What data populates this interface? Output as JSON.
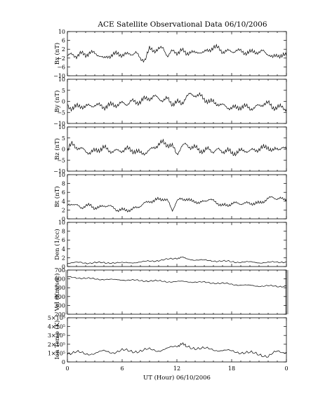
{
  "title": "ACE Satellite Observational Data   06/10/2006",
  "xlabel": "UT (Hour)   06/10/2006",
  "x_ticks": [
    "0",
    "6",
    "12",
    "18",
    "0"
  ],
  "chart_data": [
    {
      "type": "line",
      "ylabel": "Bx (nT)",
      "ylim": [
        -10,
        10
      ],
      "yticks": [
        -10,
        -6,
        -2,
        2,
        6,
        10
      ],
      "ytick_labels": [
        "−10",
        "−6",
        "−2",
        "2",
        "6",
        "10"
      ],
      "xlim": [
        0,
        24
      ],
      "x": [
        0,
        0.5,
        1,
        1.5,
        2,
        2.5,
        3,
        3.5,
        4,
        4.5,
        5,
        5.5,
        6,
        6.5,
        7,
        7.5,
        8,
        8.5,
        9,
        9.5,
        10,
        10.5,
        11,
        11.5,
        12,
        12.5,
        13,
        13.5,
        14,
        14.5,
        15,
        15.5,
        16,
        16.5,
        17,
        17.5,
        18,
        18.5,
        19,
        19.5,
        20,
        20.5,
        21,
        21.5,
        22,
        22.5,
        23,
        23.5,
        24
      ],
      "y": [
        -1,
        -0.5,
        -1,
        0,
        -0.5,
        0.5,
        0,
        -0.5,
        -2.5,
        -1,
        -0.5,
        0,
        -0.5,
        -0.5,
        0,
        0.5,
        -2.5,
        -2.5,
        2,
        1.5,
        2,
        2.5,
        -1,
        1,
        0.5,
        1.5,
        0,
        1,
        0,
        1,
        0.5,
        1.5,
        3,
        2.5,
        1,
        1,
        1,
        1.5,
        1,
        0.5,
        0.5,
        1,
        0.5,
        1,
        0,
        -2,
        -0.5,
        -1,
        -1
      ]
    },
    {
      "type": "line",
      "ylabel": "By (nT)",
      "ylim": [
        -10,
        10
      ],
      "yticks": [
        -10,
        -5,
        0,
        5,
        10
      ],
      "ytick_labels": [
        "−10",
        "−5",
        "0",
        "5",
        "10"
      ],
      "xlim": [
        0,
        24
      ],
      "x": [
        0,
        0.5,
        1,
        1.5,
        2,
        2.5,
        3,
        3.5,
        4,
        4.5,
        5,
        5.5,
        6,
        6.5,
        7,
        7.5,
        8,
        8.5,
        9,
        9.5,
        10,
        10.5,
        11,
        11.5,
        12,
        12.5,
        13,
        13.5,
        14,
        14.5,
        15,
        15.5,
        16,
        16.5,
        17,
        17.5,
        18,
        18.5,
        19,
        19.5,
        20,
        20.5,
        21,
        21.5,
        22,
        22.5,
        23,
        23.5,
        24
      ],
      "y": [
        -2,
        -3,
        -2.5,
        -2,
        -2.5,
        -2,
        -1.5,
        -2,
        -2.5,
        -2,
        -1.5,
        -1.5,
        -1,
        -1,
        0,
        -0.5,
        0,
        1,
        1.5,
        2,
        1.5,
        0.5,
        1,
        -1,
        -0.5,
        -1,
        2,
        3,
        3,
        2.5,
        1,
        0,
        -0.5,
        -1,
        -2,
        -2.5,
        -3,
        -3,
        -2.5,
        -2.5,
        -3,
        -3,
        -2,
        -1,
        -1,
        -2.5,
        -3,
        -2.5,
        -3.5
      ]
    },
    {
      "type": "line",
      "ylabel": "Bz (nT)",
      "ylim": [
        -10,
        10
      ],
      "yticks": [
        -10,
        -5,
        0,
        5,
        10
      ],
      "ytick_labels": [
        "−10",
        "−5",
        "0",
        "5",
        "10"
      ],
      "xlim": [
        0,
        24
      ],
      "x": [
        0,
        0.5,
        1,
        1.5,
        2,
        2.5,
        3,
        3.5,
        4,
        4.5,
        5,
        5.5,
        6,
        6.5,
        7,
        7.5,
        8,
        8.5,
        9,
        9.5,
        10,
        10.5,
        11,
        11.5,
        12,
        12.5,
        13,
        13.5,
        14,
        14.5,
        15,
        15.5,
        16,
        16.5,
        17,
        17.5,
        18,
        18.5,
        19,
        19.5,
        20,
        20.5,
        21,
        21.5,
        22,
        22.5,
        23,
        23.5,
        24
      ],
      "y": [
        0,
        2,
        1,
        0,
        -1,
        -1.5,
        -1,
        0,
        0.5,
        -0.5,
        -1,
        -1,
        -0.5,
        0,
        -0.5,
        -1,
        -2,
        -1.5,
        -1,
        1,
        2,
        3,
        2,
        1,
        -2,
        1,
        2,
        1,
        0.5,
        -0.5,
        -1,
        0,
        -1,
        -0.5,
        -1,
        -0.5,
        -2,
        -1.5,
        -1,
        -0.5,
        -1,
        -0.5,
        0,
        0.5,
        1,
        -1,
        0,
        1,
        -0.5
      ]
    },
    {
      "type": "line",
      "ylabel": "Bt (nT)",
      "ylim": [
        0,
        10
      ],
      "yticks": [
        0,
        2,
        4,
        6,
        8,
        10
      ],
      "ytick_labels": [
        "0",
        "2",
        "4",
        "6",
        "8",
        "10"
      ],
      "xlim": [
        0,
        24
      ],
      "x": [
        0,
        0.5,
        1,
        1.5,
        2,
        2.5,
        3,
        3.5,
        4,
        4.5,
        5,
        5.5,
        6,
        6.5,
        7,
        7.5,
        8,
        8.5,
        9,
        9.5,
        10,
        10.5,
        11,
        11.5,
        12,
        12.5,
        13,
        13.5,
        14,
        14.5,
        15,
        15.5,
        16,
        16.5,
        17,
        17.5,
        18,
        18.5,
        19,
        19.5,
        20,
        20.5,
        21,
        21.5,
        22,
        22.5,
        23,
        23.5,
        24
      ],
      "y": [
        3,
        3.5,
        3,
        2.5,
        3,
        3,
        2.5,
        2.5,
        3,
        3,
        2.5,
        2,
        2,
        2,
        2,
        2.5,
        3,
        3.5,
        4,
        4,
        4.5,
        4.5,
        4,
        2,
        4,
        4.5,
        4.5,
        4,
        4,
        3.5,
        4,
        4.5,
        4,
        3.5,
        3,
        3,
        3.5,
        3.5,
        3.5,
        3.5,
        3.5,
        3.5,
        3.5,
        4,
        4.5,
        5,
        4.5,
        4.5,
        4.5
      ]
    },
    {
      "type": "line",
      "ylabel": "Den (1/cc)",
      "ylim": [
        0,
        10
      ],
      "yticks": [
        0,
        2,
        4,
        6,
        8,
        10
      ],
      "ytick_labels": [
        "0",
        "2",
        "4",
        "6",
        "8",
        "10"
      ],
      "xlim": [
        0,
        24
      ],
      "x": [
        0,
        1,
        2,
        3,
        4,
        5,
        6,
        7,
        8,
        9,
        10,
        11,
        12,
        12.5,
        13,
        14,
        15,
        16,
        17,
        18,
        19,
        20,
        21,
        22,
        23,
        24
      ],
      "y": [
        0.8,
        0.9,
        0.8,
        0.9,
        0.8,
        0.9,
        0.8,
        0.9,
        1,
        1.2,
        1.4,
        1.6,
        1.9,
        2.1,
        1.8,
        1.5,
        1.4,
        1.3,
        1.2,
        1.1,
        1,
        1,
        0.9,
        0.9,
        1,
        1.1
      ]
    },
    {
      "type": "line",
      "ylabel": "Vel (Km/sec)",
      "ylim": [
        200,
        700
      ],
      "yticks": [
        200,
        300,
        400,
        500,
        600,
        700
      ],
      "ytick_labels": [
        "200",
        "300",
        "400",
        "500",
        "600",
        "700"
      ],
      "xlim": [
        0,
        24
      ],
      "x": [
        0,
        1,
        2,
        3,
        4,
        5,
        6,
        7,
        8,
        9,
        10,
        11,
        12,
        13,
        14,
        15,
        16,
        17,
        18,
        19,
        20,
        21,
        22,
        23,
        24
      ],
      "y": [
        620,
        615,
        605,
        600,
        595,
        590,
        590,
        585,
        580,
        578,
        575,
        570,
        568,
        570,
        565,
        560,
        555,
        548,
        540,
        530,
        525,
        520,
        520,
        515,
        520
      ]
    },
    {
      "type": "line",
      "ylabel": "Ion Temp (K)",
      "ylim": [
        0,
        500000
      ],
      "yticks": [
        0,
        100000,
        200000,
        300000,
        400000,
        500000
      ],
      "ytick_labels": [
        "0",
        "1×10⁵",
        "2×10⁵",
        "3×10⁵",
        "4×10⁵",
        "5×10⁵"
      ],
      "xlim": [
        0,
        24
      ],
      "x": [
        0,
        1,
        2,
        3,
        4,
        5,
        6,
        7,
        8,
        9,
        10,
        11,
        12,
        12.5,
        13,
        14,
        15,
        16,
        17,
        18,
        19,
        20,
        21,
        22,
        23,
        24
      ],
      "y": [
        100000,
        110000,
        90000,
        100000,
        120000,
        110000,
        130000,
        120000,
        125000,
        140000,
        130000,
        150000,
        180000,
        210000,
        170000,
        160000,
        150000,
        140000,
        130000,
        120000,
        110000,
        100000,
        90000,
        60000,
        120000,
        110000
      ]
    }
  ]
}
